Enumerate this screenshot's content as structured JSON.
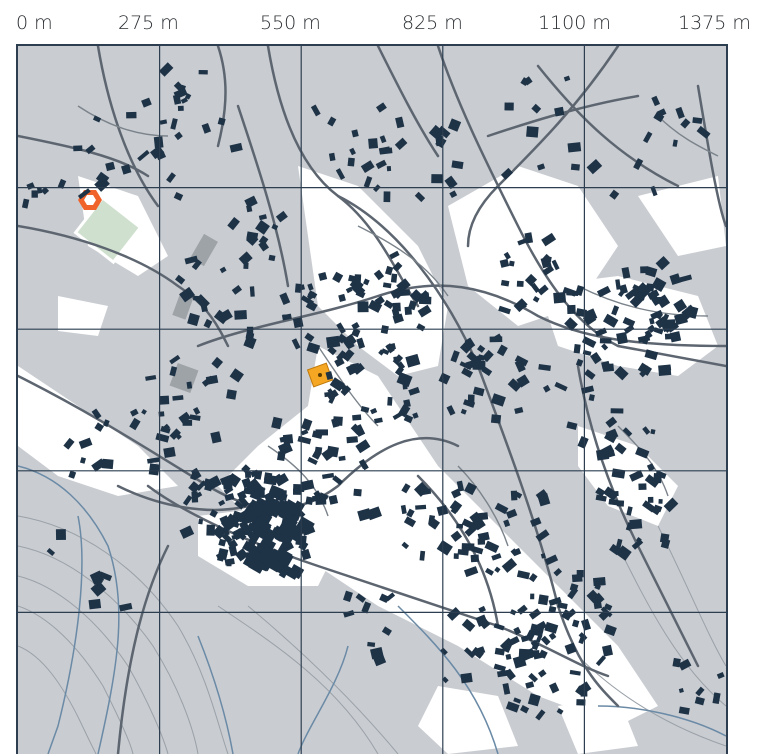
{
  "map": {
    "scale_labels": [
      "0 m",
      "275 m",
      "550 m",
      "825 m",
      "1100 m",
      "1375 m"
    ],
    "colors": {
      "land": "#c9ccd1",
      "open_area": "#ffffff",
      "building": "#1f3347",
      "road": "#5d6670",
      "grid_line": "#2c3e50",
      "water": "#6a8aa6",
      "contour": "#9aa1a8",
      "sports_field": "#cfe0cf",
      "highlight_stadium": "#f0642c",
      "highlight_marker": "#f5a623"
    },
    "features": {
      "stadium_icon": "stadium-icon",
      "marker_icon": "square-marker-icon"
    }
  }
}
